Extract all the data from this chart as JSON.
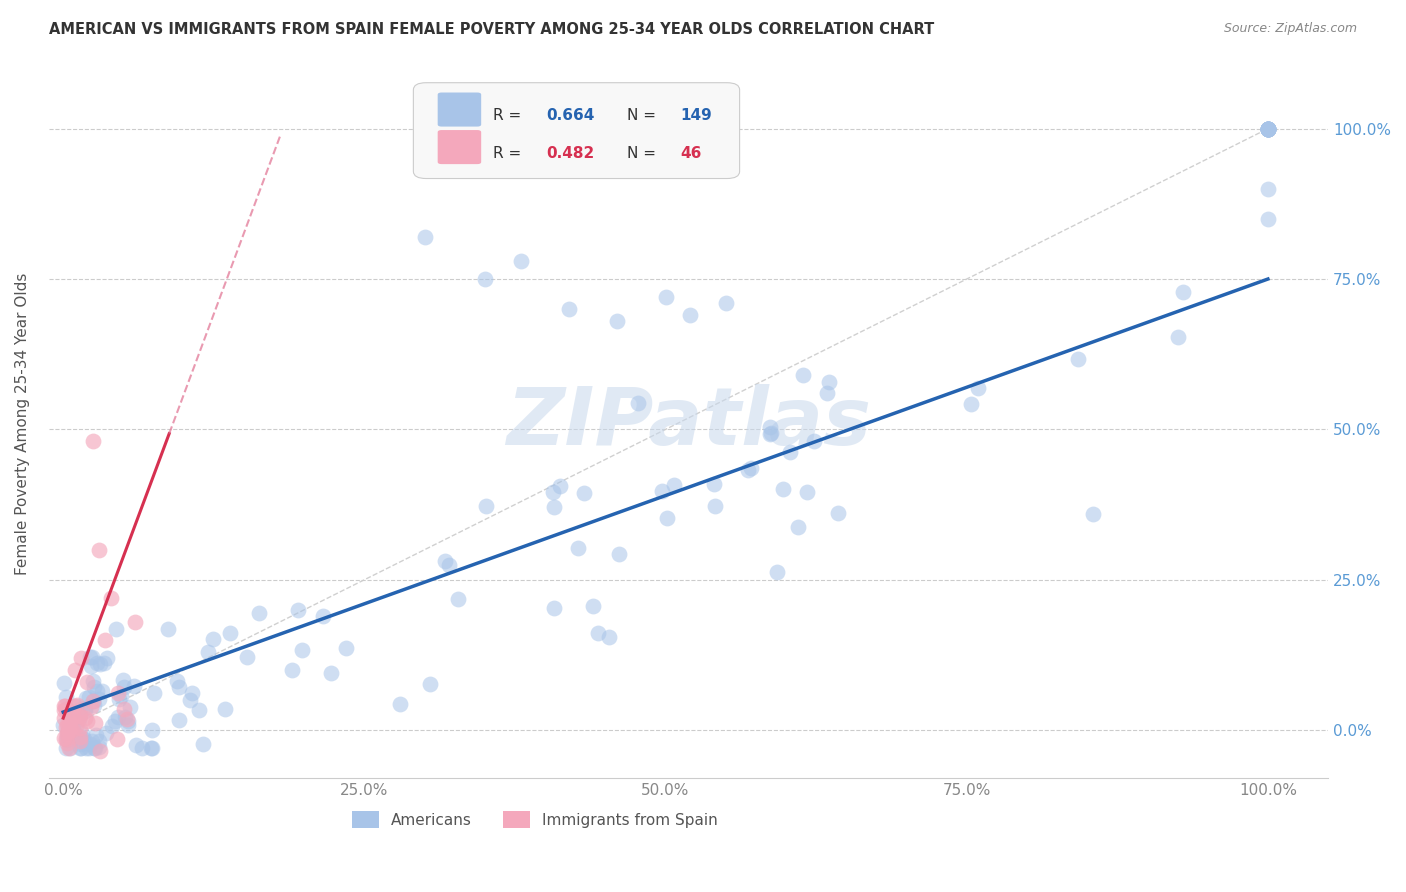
{
  "title": "AMERICAN VS IMMIGRANTS FROM SPAIN FEMALE POVERTY AMONG 25-34 YEAR OLDS CORRELATION CHART",
  "source": "Source: ZipAtlas.com",
  "ylabel": "Female Poverty Among 25-34 Year Olds",
  "R_american": 0.664,
  "N_american": 149,
  "R_spain": 0.482,
  "N_spain": 46,
  "american_color": "#a8c4e8",
  "spain_color": "#f4a8bc",
  "trendline_american_color": "#2563b0",
  "trendline_spain_color": "#d63050",
  "axis_label_color": "#5b9bd5",
  "background_color": "#ffffff",
  "grid_color": "#cccccc",
  "watermark": "ZIPatlas",
  "title_color": "#333333",
  "source_color": "#888888",
  "ylabel_color": "#555555"
}
